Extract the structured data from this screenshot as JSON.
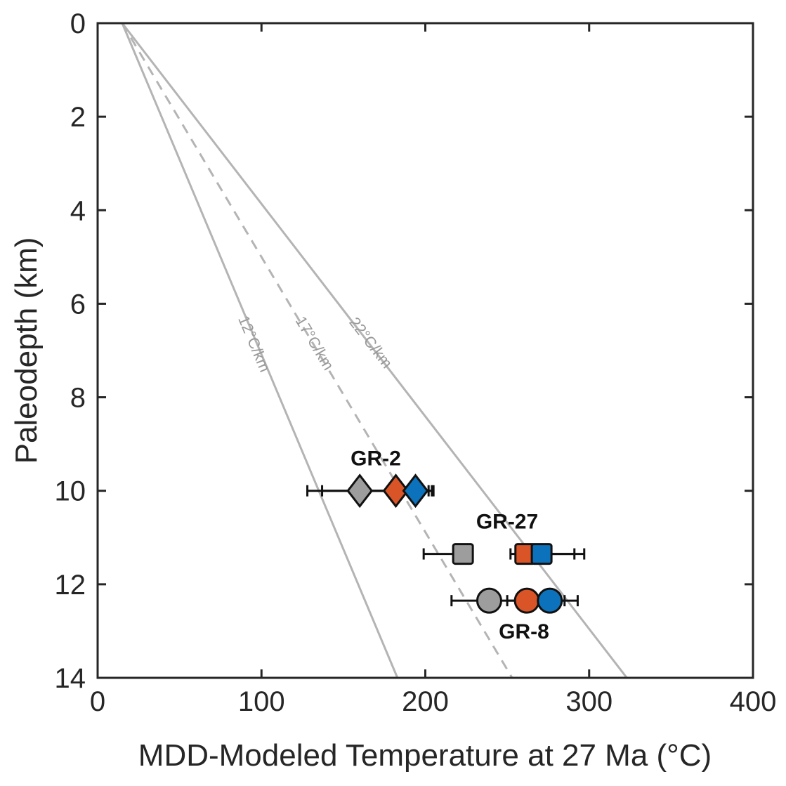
{
  "chart_data": {
    "type": "scatter",
    "xlabel": "MDD-Modeled Temperature at 27 Ma (°C)",
    "ylabel": "Paleodepth (km)",
    "xlim": [
      0,
      400
    ],
    "ylim": [
      14,
      0
    ],
    "xticks": [
      0,
      100,
      200,
      300,
      400
    ],
    "yticks": [
      0,
      2,
      4,
      6,
      8,
      10,
      12,
      14
    ],
    "grid": false,
    "geotherms": [
      {
        "label": "12°C/km",
        "surface_temp": 15,
        "gradient": 12,
        "style": "solid"
      },
      {
        "label": "17°C/km",
        "surface_temp": 15,
        "gradient": 17,
        "style": "dashed"
      },
      {
        "label": "22°C/km",
        "surface_temp": 15,
        "gradient": 22,
        "style": "solid"
      }
    ],
    "samples": [
      {
        "label": "GR-2",
        "depth": 10.0,
        "marker": "diamond",
        "label_pos": "above",
        "points": [
          {
            "color": "#9d9d9d",
            "x": 160,
            "lo": 128,
            "hi": 202
          },
          {
            "color": "#d95427",
            "x": 182,
            "lo": 137,
            "hi": 204
          },
          {
            "color": "#0c72bb",
            "x": 194,
            "lo": 160,
            "hi": 205
          }
        ]
      },
      {
        "label": "GR-27",
        "depth": 11.35,
        "marker": "square",
        "label_pos": "above",
        "points": [
          {
            "color": "#9d9d9d",
            "x": 223,
            "lo": 199,
            "hi": 225
          },
          {
            "color": "#d95427",
            "x": 261,
            "lo": 252,
            "hi": 291
          },
          {
            "color": "#0c72bb",
            "x": 271,
            "lo": 262,
            "hi": 297
          }
        ]
      },
      {
        "label": "GR-8",
        "depth": 12.35,
        "marker": "circle",
        "label_pos": "below",
        "points": [
          {
            "color": "#9d9d9d",
            "x": 239,
            "lo": 216,
            "hi": 262
          },
          {
            "color": "#d95427",
            "x": 262,
            "lo": 250,
            "hi": 285
          },
          {
            "color": "#0c72bb",
            "x": 276,
            "lo": 262,
            "hi": 293
          }
        ]
      }
    ]
  }
}
